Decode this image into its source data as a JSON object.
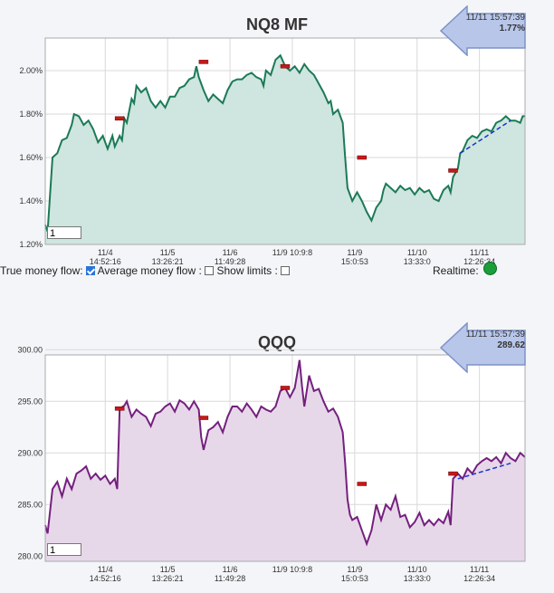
{
  "colors": {
    "nq_line": "#1b7a56",
    "nq_fill": "#cfe5df",
    "qqq_line": "#74207e",
    "qqq_fill": "#e7d8e9",
    "marker": "#c81818",
    "trend": "#1535d0"
  },
  "controls": {
    "true_money_flow_label": "True money flow:",
    "true_money_flow_checked": true,
    "average_money_flow_label": "Average money flow :",
    "average_money_flow_checked": false,
    "show_limits_label": "Show limits :",
    "show_limits_checked": false,
    "realtime_label": "Realtime:",
    "realtime_status_icon": "green-status-dot-icon"
  },
  "chart_data": [
    {
      "type": "area",
      "title": "NQ8 MF",
      "readout": {
        "time": "11/11 15:57:39",
        "value": "1.77%"
      },
      "input_value": "1",
      "ylim": [
        1.2,
        2.15
      ],
      "yticks": [
        {
          "v": 1.2,
          "label": "1.20%"
        },
        {
          "v": 1.4,
          "label": "1.40%"
        },
        {
          "v": 1.6,
          "label": "1.60%"
        },
        {
          "v": 1.8,
          "label": "1.80%"
        },
        {
          "v": 2.0,
          "label": "2.00%"
        }
      ],
      "xlim": [
        0,
        100
      ],
      "xticks": [
        {
          "x": 12.5,
          "date": "11/4",
          "time": "14:52:16"
        },
        {
          "x": 25.5,
          "date": "11/5",
          "time": "13:26:21"
        },
        {
          "x": 38.5,
          "date": "11/6",
          "time": "11:49:28"
        },
        {
          "x": 51.5,
          "date": "11/9 10:9:8",
          "time": ""
        },
        {
          "x": 64.5,
          "date": "11/9",
          "time": "15:0:53"
        },
        {
          "x": 77.5,
          "date": "11/10",
          "time": "13:33:0"
        },
        {
          "x": 90.5,
          "date": "11/11",
          "time": "12:26:34"
        }
      ],
      "grid": true,
      "points": [
        [
          0,
          1.29
        ],
        [
          0.5,
          1.26
        ],
        [
          1.5,
          1.6
        ],
        [
          2.5,
          1.62
        ],
        [
          3.5,
          1.68
        ],
        [
          4.5,
          1.69
        ],
        [
          5.5,
          1.75
        ],
        [
          6,
          1.8
        ],
        [
          7,
          1.79
        ],
        [
          8,
          1.75
        ],
        [
          9,
          1.77
        ],
        [
          10,
          1.73
        ],
        [
          11,
          1.67
        ],
        [
          12,
          1.7
        ],
        [
          13,
          1.64
        ],
        [
          14,
          1.7
        ],
        [
          14.5,
          1.65
        ],
        [
          15.5,
          1.7
        ],
        [
          16,
          1.68
        ],
        [
          16.5,
          1.78
        ],
        [
          17,
          1.76
        ],
        [
          18,
          1.87
        ],
        [
          18.5,
          1.85
        ],
        [
          19,
          1.93
        ],
        [
          20,
          1.9
        ],
        [
          21,
          1.92
        ],
        [
          22,
          1.86
        ],
        [
          23,
          1.83
        ],
        [
          24,
          1.86
        ],
        [
          25,
          1.83
        ],
        [
          26,
          1.88
        ],
        [
          27,
          1.88
        ],
        [
          28,
          1.92
        ],
        [
          29,
          1.93
        ],
        [
          30,
          1.96
        ],
        [
          31,
          1.97
        ],
        [
          31.5,
          2.02
        ],
        [
          32,
          1.97
        ],
        [
          33,
          1.91
        ],
        [
          34,
          1.86
        ],
        [
          35,
          1.89
        ],
        [
          36,
          1.87
        ],
        [
          37,
          1.85
        ],
        [
          38,
          1.91
        ],
        [
          39,
          1.95
        ],
        [
          40,
          1.96
        ],
        [
          41,
          1.96
        ],
        [
          42,
          1.98
        ],
        [
          43,
          1.99
        ],
        [
          44,
          1.97
        ],
        [
          45,
          1.96
        ],
        [
          45.5,
          1.93
        ],
        [
          46,
          2.0
        ],
        [
          47,
          1.98
        ],
        [
          48,
          2.05
        ],
        [
          49,
          2.07
        ],
        [
          50,
          2.02
        ],
        [
          51,
          2.0
        ],
        [
          52,
          2.02
        ],
        [
          53,
          1.99
        ],
        [
          54,
          2.03
        ],
        [
          55,
          2.0
        ],
        [
          56,
          1.98
        ],
        [
          57,
          1.94
        ],
        [
          58,
          1.9
        ],
        [
          59,
          1.85
        ],
        [
          59.5,
          1.86
        ],
        [
          60,
          1.8
        ],
        [
          61,
          1.82
        ],
        [
          62,
          1.76
        ],
        [
          62.5,
          1.6
        ],
        [
          63,
          1.46
        ],
        [
          64,
          1.4
        ],
        [
          65,
          1.44
        ],
        [
          66,
          1.4
        ],
        [
          67,
          1.35
        ],
        [
          68,
          1.31
        ],
        [
          69,
          1.37
        ],
        [
          70,
          1.4
        ],
        [
          70.5,
          1.45
        ],
        [
          71,
          1.48
        ],
        [
          72,
          1.46
        ],
        [
          73,
          1.44
        ],
        [
          74,
          1.47
        ],
        [
          75,
          1.45
        ],
        [
          76,
          1.46
        ],
        [
          77,
          1.43
        ],
        [
          78,
          1.46
        ],
        [
          79,
          1.44
        ],
        [
          80,
          1.45
        ],
        [
          81,
          1.41
        ],
        [
          82,
          1.4
        ],
        [
          83,
          1.45
        ],
        [
          84,
          1.47
        ],
        [
          84.5,
          1.44
        ],
        [
          85,
          1.51
        ],
        [
          86,
          1.55
        ],
        [
          86.5,
          1.62
        ],
        [
          87,
          1.63
        ],
        [
          88,
          1.68
        ],
        [
          89,
          1.7
        ],
        [
          90,
          1.69
        ],
        [
          91,
          1.72
        ],
        [
          92,
          1.73
        ],
        [
          93,
          1.72
        ],
        [
          94,
          1.76
        ],
        [
          95,
          1.77
        ],
        [
          96,
          1.79
        ],
        [
          97,
          1.77
        ],
        [
          98,
          1.77
        ],
        [
          99,
          1.76
        ],
        [
          99.5,
          1.79
        ],
        [
          100,
          1.79
        ]
      ],
      "markers": [
        [
          15.5,
          1.78
        ],
        [
          33,
          2.04
        ],
        [
          50,
          2.02
        ],
        [
          66,
          1.6
        ],
        [
          85,
          1.54
        ]
      ],
      "trendline": [
        [
          86.5,
          1.62
        ],
        [
          97,
          1.77
        ]
      ]
    },
    {
      "type": "area",
      "title": "QQQ",
      "readout": {
        "time": "11/11 15:57:39",
        "value": "289.62"
      },
      "input_value": "1",
      "ylim": [
        279.5,
        299.5
      ],
      "yticks": [
        {
          "v": 280,
          "label": "280.00"
        },
        {
          "v": 285,
          "label": "285.00"
        },
        {
          "v": 290,
          "label": "290.00"
        },
        {
          "v": 295,
          "label": "295.00"
        },
        {
          "v": 300,
          "label": "300.00"
        }
      ],
      "xlim": [
        0,
        100
      ],
      "xticks": [
        {
          "x": 12.5,
          "date": "11/4",
          "time": "14:52:16"
        },
        {
          "x": 25.5,
          "date": "11/5",
          "time": "13:26:21"
        },
        {
          "x": 38.5,
          "date": "11/6",
          "time": "11:49:28"
        },
        {
          "x": 51.5,
          "date": "11/9 10:9:8",
          "time": ""
        },
        {
          "x": 64.5,
          "date": "11/9",
          "time": "15:0:53"
        },
        {
          "x": 77.5,
          "date": "11/10",
          "time": "13:33:0"
        },
        {
          "x": 90.5,
          "date": "11/11",
          "time": "12:26:34"
        }
      ],
      "grid": true,
      "points": [
        [
          0,
          283.0
        ],
        [
          0.5,
          282.2
        ],
        [
          1.5,
          286.5
        ],
        [
          2.5,
          287.2
        ],
        [
          3.5,
          285.8
        ],
        [
          4.5,
          287.5
        ],
        [
          5.5,
          286.5
        ],
        [
          6.5,
          288.0
        ],
        [
          7.5,
          288.3
        ],
        [
          8.5,
          288.7
        ],
        [
          9.5,
          287.5
        ],
        [
          10.5,
          288.0
        ],
        [
          11.5,
          287.4
        ],
        [
          12.5,
          287.8
        ],
        [
          13.5,
          287.0
        ],
        [
          14.5,
          287.5
        ],
        [
          15,
          286.5
        ],
        [
          15.5,
          294.3
        ],
        [
          16.5,
          294.6
        ],
        [
          17,
          295.0
        ],
        [
          18,
          293.5
        ],
        [
          19,
          294.2
        ],
        [
          20,
          293.8
        ],
        [
          21,
          293.5
        ],
        [
          22,
          292.6
        ],
        [
          23,
          293.8
        ],
        [
          24,
          294.0
        ],
        [
          25,
          294.5
        ],
        [
          26,
          294.8
        ],
        [
          27,
          294.0
        ],
        [
          28,
          295.1
        ],
        [
          29,
          294.8
        ],
        [
          30,
          294.2
        ],
        [
          31,
          295.0
        ],
        [
          32,
          294.2
        ],
        [
          32.5,
          291.5
        ],
        [
          33,
          290.3
        ],
        [
          34,
          292.2
        ],
        [
          35,
          292.5
        ],
        [
          36,
          293.0
        ],
        [
          37,
          292.0
        ],
        [
          38,
          293.5
        ],
        [
          39,
          294.5
        ],
        [
          40,
          294.5
        ],
        [
          41,
          294.0
        ],
        [
          42,
          294.8
        ],
        [
          43,
          294.2
        ],
        [
          44,
          293.5
        ],
        [
          45,
          294.5
        ],
        [
          46,
          294.2
        ],
        [
          47,
          294.0
        ],
        [
          48,
          294.5
        ],
        [
          49,
          296.0
        ],
        [
          50,
          296.3
        ],
        [
          51,
          295.4
        ],
        [
          52,
          296.3
        ],
        [
          53,
          299.0
        ],
        [
          53.5,
          296.5
        ],
        [
          54,
          294.5
        ],
        [
          55,
          297.5
        ],
        [
          56,
          296.0
        ],
        [
          57,
          296.2
        ],
        [
          58,
          295.0
        ],
        [
          59,
          294.0
        ],
        [
          60,
          294.3
        ],
        [
          61,
          293.5
        ],
        [
          62,
          292.0
        ],
        [
          62.5,
          289.0
        ],
        [
          63,
          285.5
        ],
        [
          63.5,
          284.0
        ],
        [
          64,
          283.5
        ],
        [
          65,
          283.8
        ],
        [
          66,
          282.5
        ],
        [
          67,
          281.2
        ],
        [
          68,
          282.5
        ],
        [
          69,
          285.0
        ],
        [
          70,
          283.5
        ],
        [
          71,
          285.0
        ],
        [
          72,
          284.5
        ],
        [
          73,
          285.8
        ],
        [
          74,
          283.8
        ],
        [
          75,
          284.0
        ],
        [
          76,
          282.8
        ],
        [
          77,
          283.3
        ],
        [
          78,
          284.2
        ],
        [
          79,
          283.0
        ],
        [
          80,
          283.5
        ],
        [
          81,
          283.0
        ],
        [
          82,
          283.6
        ],
        [
          83,
          283.2
        ],
        [
          84,
          284.3
        ],
        [
          84.5,
          283.0
        ],
        [
          85,
          287.5
        ],
        [
          86,
          288.0
        ],
        [
          87,
          287.5
        ],
        [
          88,
          288.5
        ],
        [
          89,
          288.0
        ],
        [
          90,
          288.8
        ],
        [
          91,
          289.2
        ],
        [
          92,
          289.5
        ],
        [
          93,
          289.2
        ],
        [
          94,
          289.6
        ],
        [
          95,
          289.0
        ],
        [
          96,
          290.0
        ],
        [
          97,
          289.5
        ],
        [
          98,
          289.2
        ],
        [
          99,
          290.0
        ],
        [
          100,
          289.6
        ]
      ],
      "markers": [
        [
          15.5,
          294.3
        ],
        [
          33,
          293.4
        ],
        [
          50,
          296.3
        ],
        [
          66,
          287.0
        ],
        [
          85,
          288.0
        ]
      ],
      "trendline": [
        [
          86,
          287.5
        ],
        [
          97,
          289.0
        ]
      ]
    }
  ]
}
